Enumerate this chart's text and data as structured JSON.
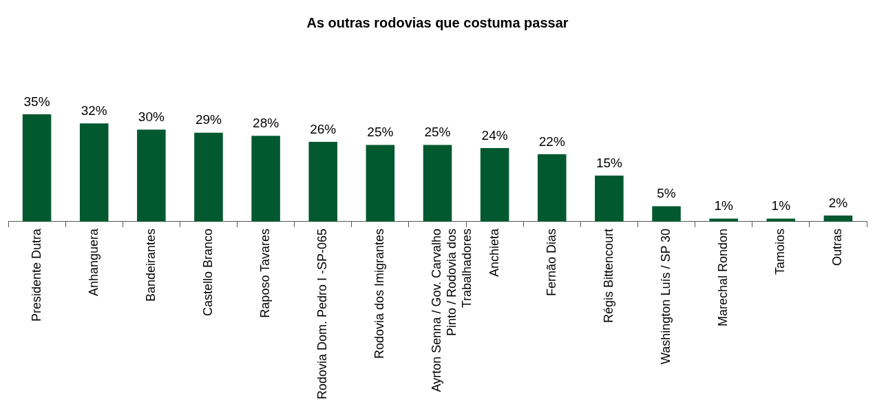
{
  "chart_data": {
    "type": "bar",
    "title": "As outras rodovias que costuma passar",
    "categories": [
      "Presidente Dutra",
      "Anhanguera",
      "Bandeirantes",
      "Castello Branco",
      "Raposo Tavares",
      "Rodovia Dom. Pedro I -SP-065",
      "Rodovia dos Imigrantes",
      "Ayrton Senna / Gov. Carvalho Pinto / Rodovia dos Trabalhadores",
      "Anchieta",
      "Fernão Dias",
      "Régis Bittencourt",
      "Washington Luís / SP 30",
      "Marechal Rondon",
      "Tamoios",
      "Outras"
    ],
    "values": [
      35,
      32,
      30,
      29,
      28,
      26,
      25,
      25,
      24,
      22,
      15,
      5,
      1,
      1,
      2
    ],
    "value_labels": [
      "35%",
      "32%",
      "30%",
      "29%",
      "28%",
      "26%",
      "25%",
      "25%",
      "24%",
      "22%",
      "15%",
      "5%",
      "1%",
      "1%",
      "2%"
    ],
    "color": "#03592f",
    "legend": false
  }
}
